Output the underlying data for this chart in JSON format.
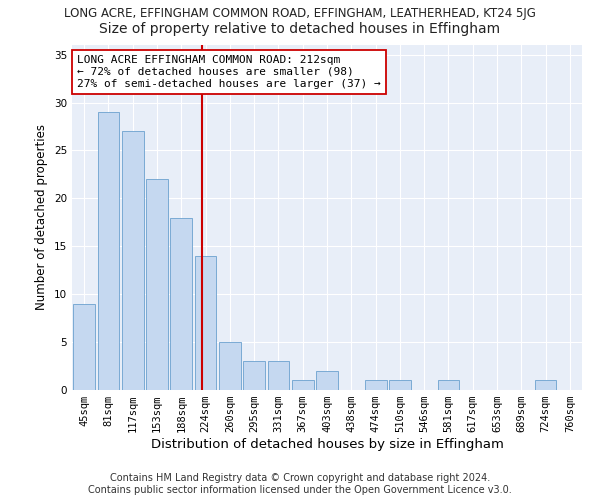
{
  "title": "LONG ACRE, EFFINGHAM COMMON ROAD, EFFINGHAM, LEATHERHEAD, KT24 5JG",
  "subtitle": "Size of property relative to detached houses in Effingham",
  "xlabel": "Distribution of detached houses by size in Effingham",
  "ylabel": "Number of detached properties",
  "categories": [
    "45sqm",
    "81sqm",
    "117sqm",
    "153sqm",
    "188sqm",
    "224sqm",
    "260sqm",
    "295sqm",
    "331sqm",
    "367sqm",
    "403sqm",
    "438sqm",
    "474sqm",
    "510sqm",
    "546sqm",
    "581sqm",
    "617sqm",
    "653sqm",
    "689sqm",
    "724sqm",
    "760sqm"
  ],
  "values": [
    9,
    29,
    27,
    22,
    18,
    14,
    5,
    3,
    3,
    1,
    2,
    0,
    1,
    1,
    0,
    1,
    0,
    0,
    0,
    1,
    0
  ],
  "bar_color": "#c5d8f0",
  "bar_edge_color": "#7aaad4",
  "vline_color": "#cc0000",
  "annotation_text": "LONG ACRE EFFINGHAM COMMON ROAD: 212sqm\n← 72% of detached houses are smaller (98)\n27% of semi-detached houses are larger (37) →",
  "annotation_box_color": "#ffffff",
  "annotation_box_edge": "#cc0000",
  "ylim": [
    0,
    36
  ],
  "yticks": [
    0,
    5,
    10,
    15,
    20,
    25,
    30,
    35
  ],
  "footer_line1": "Contains HM Land Registry data © Crown copyright and database right 2024.",
  "footer_line2": "Contains public sector information licensed under the Open Government Licence v3.0.",
  "bg_color": "#e8eef8",
  "title_fontsize": 8.5,
  "subtitle_fontsize": 10,
  "xlabel_fontsize": 9.5,
  "ylabel_fontsize": 8.5,
  "tick_fontsize": 7.5,
  "footer_fontsize": 7,
  "annot_fontsize": 8
}
